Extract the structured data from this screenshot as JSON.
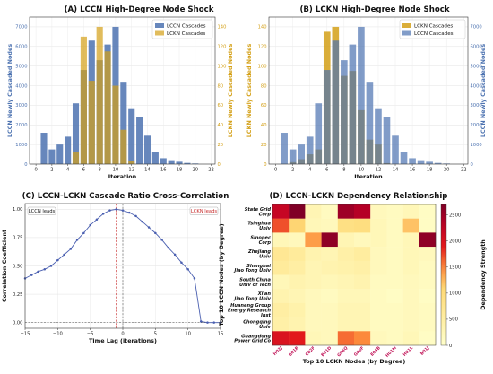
{
  "chart_data": [
    {
      "type": "bar",
      "title": "(A) LCCN High-Degree Node Shock",
      "xlabel": "Iteration",
      "ylabel": "LCCN Newly Cascaded Nodes",
      "y2label": "LCKN Newly Cascaded Nodes",
      "x_ticks": [
        0,
        2,
        4,
        6,
        8,
        10,
        12,
        14,
        16,
        18,
        20,
        22
      ],
      "y_ticks": [
        0,
        1000,
        2000,
        3000,
        4000,
        5000,
        6000,
        7000
      ],
      "y2_ticks": [
        0,
        20,
        40,
        60,
        80,
        100,
        120,
        140
      ],
      "xlim": [
        -0.8,
        22.5
      ],
      "ylim": [
        0,
        7500
      ],
      "y2lim": [
        0,
        150
      ],
      "legend_position": "top-right",
      "x": [
        1,
        2,
        3,
        4,
        5,
        6,
        7,
        8,
        9,
        10,
        11,
        12,
        13,
        14,
        15,
        16,
        17,
        18,
        19,
        20
      ],
      "series": [
        {
          "name": "LCCN Cascades",
          "color": "#4c72b0",
          "axis": "left",
          "values": [
            1600,
            750,
            1000,
            1400,
            3100,
            4800,
            6300,
            5300,
            6100,
            7000,
            4200,
            2850,
            2400,
            1450,
            600,
            300,
            200,
            120,
            60,
            30
          ]
        },
        {
          "name": "LCKN Cascades",
          "color": "#d4a017",
          "axis": "right",
          "values": [
            0,
            0,
            0,
            0,
            12,
            130,
            85,
            140,
            115,
            80,
            35,
            3,
            0,
            0,
            0,
            0,
            0,
            0,
            0,
            0
          ]
        }
      ]
    },
    {
      "type": "bar",
      "title": "(B) LCKN High-Degree Node Shock",
      "xlabel": "Iteration",
      "ylabel": "LCKN Newly Cascaded Nodes",
      "y2label": "LCCN Newly Cascaded Nodes",
      "x_ticks": [
        0,
        2,
        4,
        6,
        8,
        10,
        12,
        14,
        16,
        18,
        20,
        22
      ],
      "y_ticks": [
        0,
        20,
        40,
        60,
        80,
        100,
        120,
        140
      ],
      "y2_ticks": [
        0,
        1000,
        2000,
        3000,
        4000,
        5000,
        6000,
        7000
      ],
      "xlim": [
        -0.8,
        22.5
      ],
      "ylim": [
        0,
        150
      ],
      "y2lim": [
        0,
        7500
      ],
      "legend_position": "top-right",
      "x": [
        1,
        2,
        3,
        4,
        5,
        6,
        7,
        8,
        9,
        10,
        11,
        12,
        13,
        14,
        15,
        16,
        17,
        18,
        19,
        20
      ],
      "series": [
        {
          "name": "LCKN Cascades",
          "color": "#d4a017",
          "axis": "left",
          "values": [
            0,
            2,
            5,
            10,
            15,
            135,
            140,
            90,
            95,
            55,
            25,
            20,
            1,
            0,
            0,
            0,
            0,
            0,
            0,
            0
          ]
        },
        {
          "name": "LCCN Cascades",
          "color": "#4c72b0",
          "axis": "right",
          "values": [
            1600,
            750,
            1000,
            1400,
            3100,
            4800,
            6300,
            5300,
            6100,
            7000,
            4200,
            2850,
            2400,
            1450,
            600,
            300,
            200,
            120,
            60,
            30
          ]
        }
      ]
    },
    {
      "type": "line",
      "title": "(C) LCCN-LCKN Cascade Ratio Cross-Correlation",
      "xlabel": "Time Lag (iterations)",
      "ylabel": "Correlation Coefficient",
      "x_ticks": [
        -15,
        -10,
        -5,
        0,
        5,
        10,
        15
      ],
      "x_tick_labels": [
        "−15",
        "−10",
        "−5",
        "0",
        "5",
        "10",
        "15"
      ],
      "y_ticks": [
        0.0,
        0.25,
        0.5,
        0.75,
        1.0
      ],
      "y_tick_labels": [
        "0.00",
        "0.25",
        "0.50",
        "0.75",
        "1.00"
      ],
      "xlim": [
        -15,
        15
      ],
      "ylim": [
        -0.05,
        1.05
      ],
      "grid": true,
      "annotations": [
        "LCCN leads",
        "LCKN leads"
      ],
      "vlines": [
        -1,
        0
      ],
      "series": [
        {
          "name": "",
          "color": "#4a5fb0",
          "x": [
            -15,
            -14,
            -13,
            -12,
            -11,
            -10,
            -9,
            -8,
            -7,
            -6,
            -5,
            -4,
            -3,
            -2,
            -1,
            0,
            1,
            2,
            3,
            4,
            5,
            6,
            7,
            8,
            9,
            10,
            11,
            12,
            13,
            14,
            15
          ],
          "values": [
            0.39,
            0.42,
            0.45,
            0.47,
            0.5,
            0.55,
            0.6,
            0.65,
            0.73,
            0.79,
            0.86,
            0.91,
            0.96,
            0.99,
            1.0,
            0.99,
            0.97,
            0.94,
            0.89,
            0.84,
            0.79,
            0.73,
            0.66,
            0.6,
            0.53,
            0.47,
            0.39,
            0.01,
            0.0,
            0.0,
            0.0
          ]
        }
      ]
    },
    {
      "type": "heatmap",
      "title": "(D) LCCN-LCKN Dependency Relationship",
      "xlabel": "Top 10 LCKN Nodes (by Degree)",
      "ylabel": "Top 10 LCCN Nodes (by Degree)",
      "colorbar_label": "Dependency Strength",
      "colorbar_ticks": [
        0,
        500,
        1000,
        1500,
        2000,
        2500
      ],
      "zlim": [
        0,
        2700
      ],
      "x_categories": [
        "H02J",
        "G01R",
        "C02F",
        "B01D",
        "G06Q",
        "G06F",
        "E04B",
        "H01M",
        "H01L",
        "B01J"
      ],
      "y_categories": [
        [
          "State Grid",
          "Corp"
        ],
        [
          "Tsinghua",
          "Univ"
        ],
        [
          "Sinopec",
          "Corp"
        ],
        [
          "Zhejiang",
          "Univ"
        ],
        [
          "Shanghai",
          "Jiao Tong Univ"
        ],
        [
          "South China",
          "Univ of Tech"
        ],
        [
          "Xi'an",
          "Jiao Tong Univ"
        ],
        [
          "Huaneng Group",
          "Energy Research",
          "Inst"
        ],
        [
          "Chongqing",
          "Univ"
        ],
        [
          "Guangdong",
          "Power Grid Co"
        ]
      ],
      "values": [
        [
          2200,
          2700,
          300,
          150,
          2500,
          2350,
          200,
          150,
          250,
          100
        ],
        [
          1700,
          1100,
          250,
          200,
          900,
          950,
          250,
          150,
          1200,
          100
        ],
        [
          250,
          200,
          1400,
          2600,
          300,
          200,
          250,
          150,
          250,
          2600
        ],
        [
          700,
          600,
          350,
          300,
          450,
          550,
          200,
          150,
          250,
          200
        ],
        [
          600,
          500,
          300,
          350,
          400,
          450,
          200,
          150,
          250,
          150
        ],
        [
          250,
          350,
          300,
          250,
          300,
          350,
          150,
          150,
          200,
          150
        ],
        [
          350,
          300,
          200,
          150,
          250,
          250,
          150,
          100,
          200,
          100
        ],
        [
          500,
          400,
          200,
          200,
          300,
          300,
          150,
          150,
          200,
          150
        ],
        [
          450,
          350,
          200,
          200,
          300,
          300,
          150,
          150,
          200,
          150
        ],
        [
          2000,
          1900,
          250,
          200,
          1600,
          1500,
          200,
          150,
          250,
          100
        ]
      ]
    }
  ]
}
